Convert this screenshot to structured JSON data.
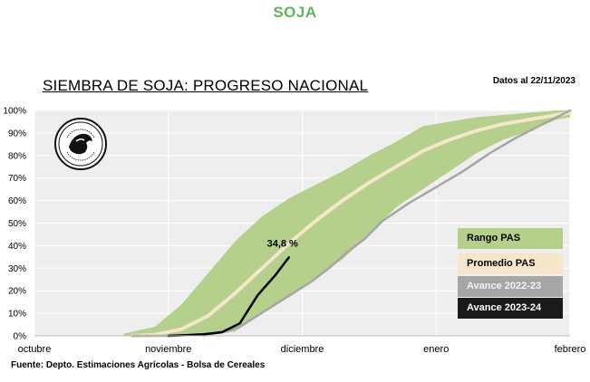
{
  "header": {
    "title": "SOJA"
  },
  "chart_title": "SIEMBRA DE SOJA: PROGRESO NACIONAL",
  "date_note": "Datos al 22/11/2023",
  "source": "Fuente: Depto. Estimaciones Agrícolas - Bolsa de Cereales",
  "colors": {
    "header": "#5cb85c",
    "range": "#b5d08a",
    "average": "#f5e6cc",
    "avance_2022_23": "#a6a6a6",
    "avance_2023_24": "#000000",
    "plot_bg": "#eeeeee"
  },
  "chart_data": {
    "type": "area",
    "xlim": [
      0,
      120
    ],
    "ylim": [
      0,
      100
    ],
    "y_ticks": [
      "0%",
      "10%",
      "20%",
      "30%",
      "40%",
      "50%",
      "60%",
      "70%",
      "80%",
      "90%",
      "100%"
    ],
    "x_ticks": [
      {
        "label": "octubre",
        "x": 0
      },
      {
        "label": "noviembre",
        "x": 30
      },
      {
        "label": "diciembre",
        "x": 60
      },
      {
        "label": "enero",
        "x": 90
      },
      {
        "label": "febrero",
        "x": 120
      }
    ],
    "grid": true,
    "legend": "right",
    "series": [
      {
        "name": "Rango PAS",
        "type": "band",
        "x": [
          20,
          27,
          33,
          39,
          45,
          51,
          57,
          63,
          69,
          75,
          81,
          87,
          93,
          99,
          105,
          111,
          117,
          120
        ],
        "lower": [
          0,
          0,
          0,
          0,
          2,
          10,
          18,
          26,
          34,
          45,
          57,
          65,
          73,
          81,
          87,
          91,
          96,
          97
        ],
        "upper": [
          1,
          4,
          14,
          28,
          42,
          53,
          61,
          67,
          73,
          80,
          86,
          93,
          95,
          97,
          98,
          99,
          100,
          100
        ]
      },
      {
        "name": "Promedio PAS",
        "type": "line",
        "x": [
          22,
          27,
          33,
          39,
          45,
          51,
          57,
          63,
          69,
          75,
          81,
          87,
          93,
          99,
          105,
          111,
          117,
          120
        ],
        "values": [
          0,
          0.5,
          3,
          9,
          19,
          30,
          41,
          51,
          60,
          68,
          75,
          82,
          87,
          91,
          94,
          96,
          98,
          99
        ]
      },
      {
        "name": "Avance 2022-23",
        "type": "line",
        "x": [
          22,
          30,
          35,
          39,
          43,
          46,
          50,
          54,
          58,
          62,
          66,
          70,
          74,
          78,
          84,
          90,
          96,
          102,
          108,
          114,
          120
        ],
        "values": [
          0,
          0,
          0.5,
          1,
          2,
          4,
          9,
          14,
          19,
          24,
          30,
          37,
          43,
          51,
          59,
          66,
          73,
          81,
          88,
          94,
          100
        ]
      },
      {
        "name": "Avance 2023-24",
        "type": "line",
        "x": [
          30,
          34,
          38,
          42,
          46,
          50,
          54,
          57
        ],
        "values": [
          0,
          0.3,
          0.7,
          1.6,
          5.5,
          18,
          27,
          34.8
        ]
      }
    ],
    "annotations": [
      {
        "text": "34,8 %",
        "x": 57,
        "y": 34.8
      }
    ]
  }
}
